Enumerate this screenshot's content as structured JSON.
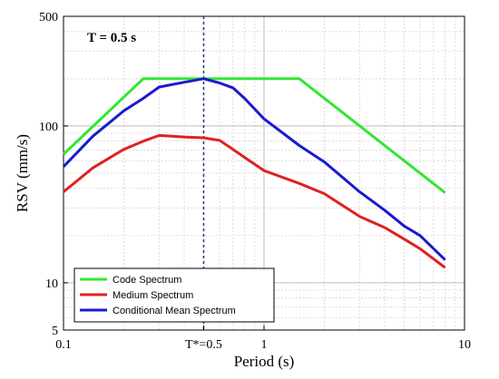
{
  "chart_data": {
    "type": "line",
    "xscale": "log",
    "yscale": "log",
    "xlim": [
      0.1,
      10
    ],
    "ylim": [
      5,
      500
    ],
    "xlabel": "Period (s)",
    "ylabel": "RSV (mm/s)",
    "grid": true,
    "legend_position": "bottom-left",
    "annotation": "T = 0.5 s",
    "reference_line": {
      "x": 0.5,
      "label": "T*=0.5"
    },
    "x_ticks": [
      {
        "value": 0.1,
        "label": "0.1"
      },
      {
        "value": 0.5,
        "label": "T*=0.5"
      },
      {
        "value": 1,
        "label": "1"
      },
      {
        "value": 10,
        "label": "10"
      }
    ],
    "y_ticks": [
      {
        "value": 5,
        "label": "5"
      },
      {
        "value": 10,
        "label": "10"
      },
      {
        "value": 100,
        "label": "100"
      },
      {
        "value": 500,
        "label": "500"
      }
    ],
    "series": [
      {
        "name": "Code Spectrum",
        "color": "#33e633",
        "points": [
          [
            0.1,
            66
          ],
          [
            0.25,
            200
          ],
          [
            1.5,
            200
          ],
          [
            8,
            37.5
          ]
        ]
      },
      {
        "name": "Medium Spectrum",
        "color": "#e02020",
        "points": [
          [
            0.1,
            38
          ],
          [
            0.14,
            54
          ],
          [
            0.2,
            71
          ],
          [
            0.25,
            80
          ],
          [
            0.3,
            87
          ],
          [
            0.35,
            86
          ],
          [
            0.4,
            85
          ],
          [
            0.5,
            84
          ],
          [
            0.6,
            81
          ],
          [
            0.7,
            71
          ],
          [
            0.8,
            63
          ],
          [
            1,
            52
          ],
          [
            1.5,
            43
          ],
          [
            2,
            37
          ],
          [
            3,
            26.5
          ],
          [
            4,
            22.5
          ],
          [
            5,
            19
          ],
          [
            6,
            16.5
          ],
          [
            8,
            12.5
          ]
        ]
      },
      {
        "name": "Conditional Mean Spectrum",
        "color": "#1a1ad0",
        "points": [
          [
            0.1,
            55
          ],
          [
            0.14,
            86
          ],
          [
            0.2,
            125
          ],
          [
            0.25,
            150
          ],
          [
            0.3,
            177
          ],
          [
            0.4,
            190
          ],
          [
            0.5,
            200
          ],
          [
            0.6,
            188
          ],
          [
            0.7,
            175
          ],
          [
            0.8,
            150
          ],
          [
            1,
            111
          ],
          [
            1.5,
            75
          ],
          [
            2,
            59
          ],
          [
            3,
            38
          ],
          [
            4,
            29
          ],
          [
            5,
            23
          ],
          [
            6,
            20
          ],
          [
            8,
            14
          ]
        ]
      }
    ]
  }
}
